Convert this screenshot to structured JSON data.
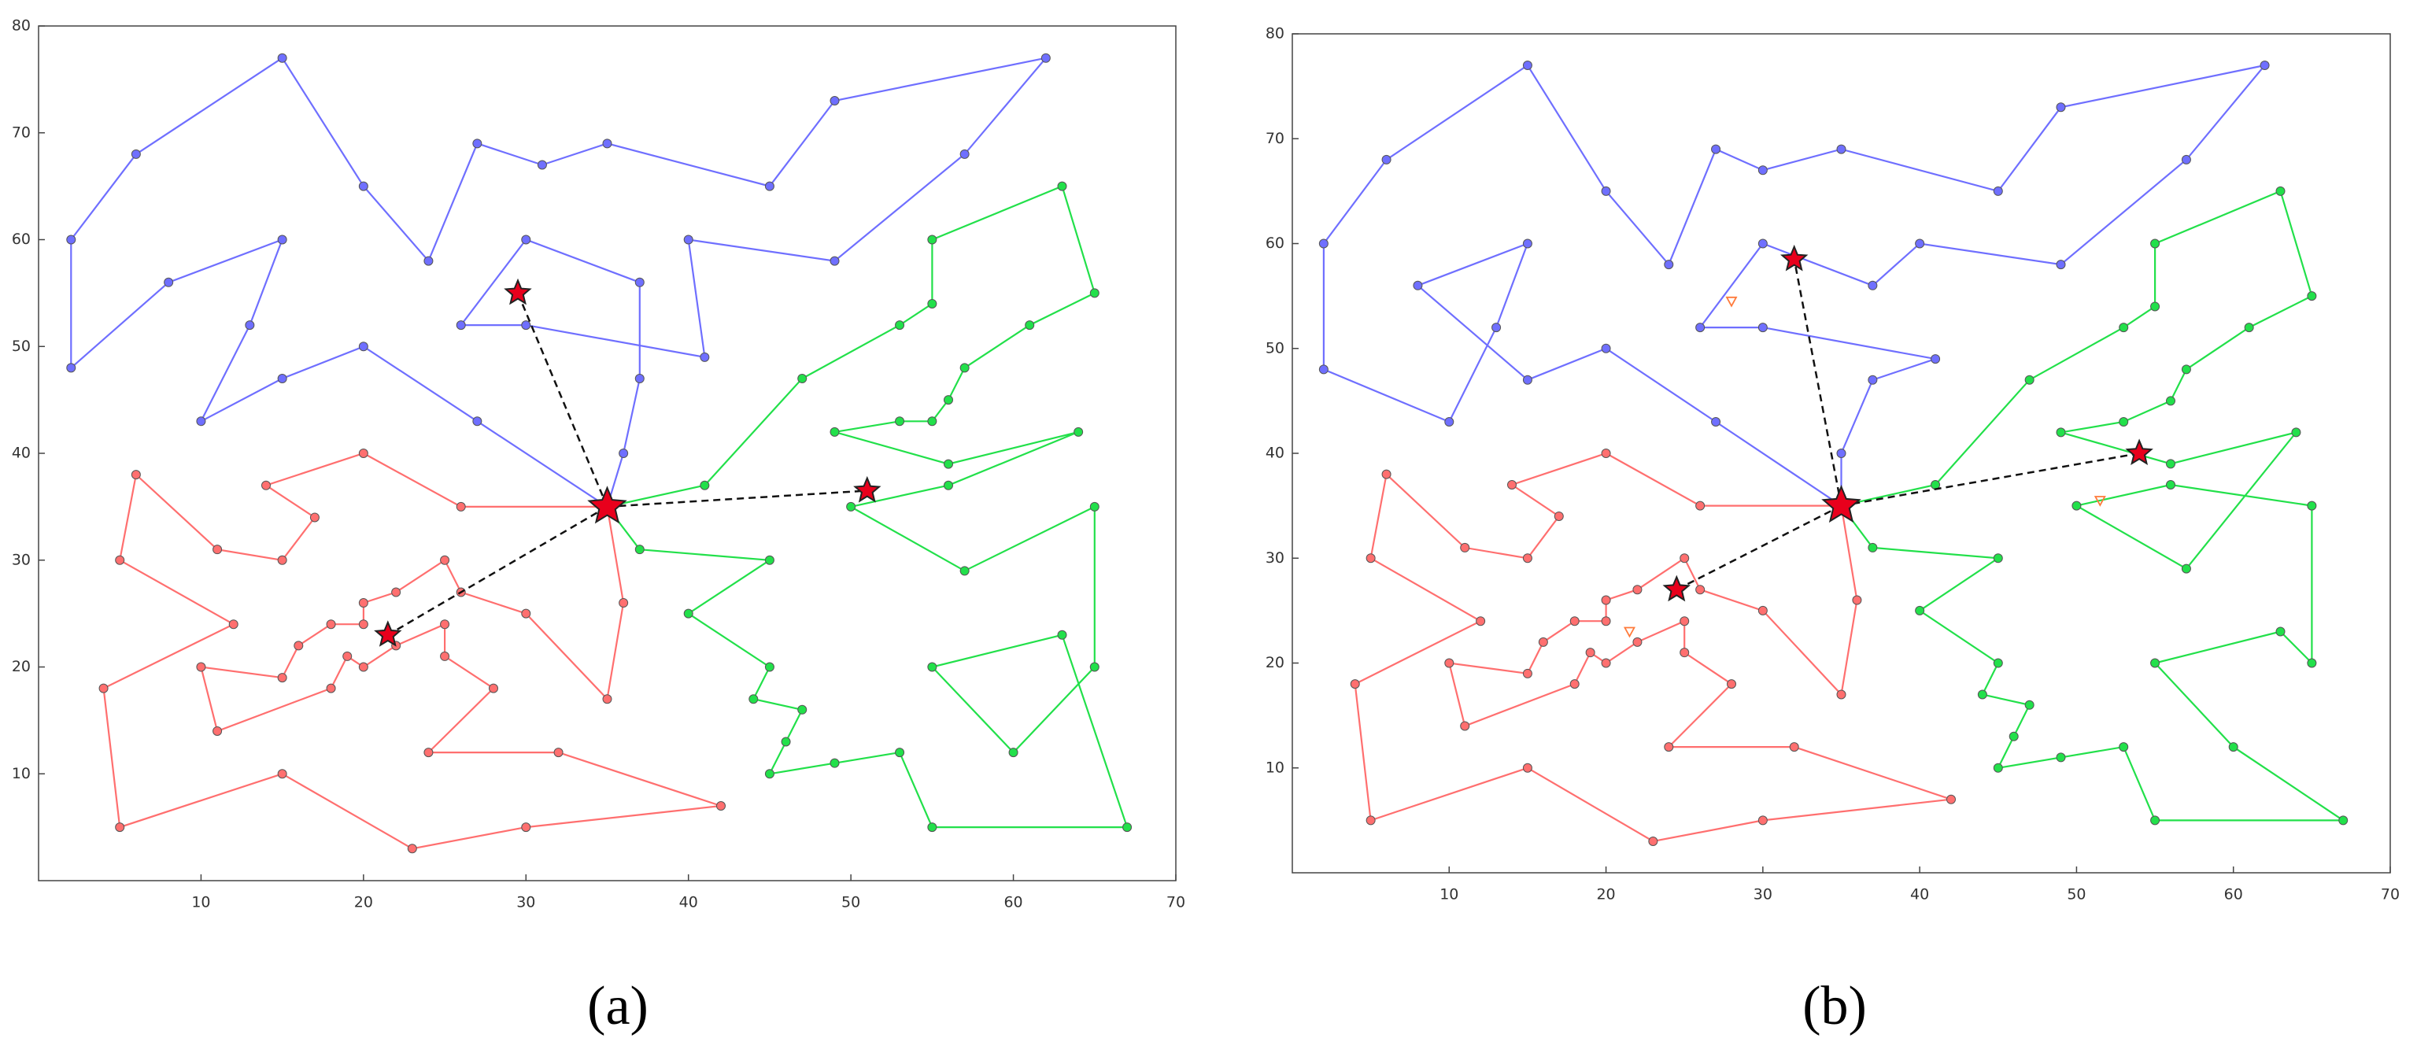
{
  "chart_data": [
    {
      "type": "line",
      "caption": "(a)",
      "xlim": [
        0,
        70
      ],
      "ylim": [
        0,
        80
      ],
      "xticks": [
        10,
        20,
        30,
        40,
        50,
        60,
        70
      ],
      "yticks": [
        10,
        20,
        30,
        40,
        50,
        60,
        70,
        80
      ],
      "series": [
        {
          "color": "#6f6fff",
          "x": [
            35,
            27,
            20,
            15,
            10,
            13,
            15,
            8,
            2,
            2,
            6,
            15,
            20,
            24,
            27,
            31,
            35,
            45,
            49,
            62,
            57,
            49,
            40,
            41,
            30,
            26,
            30,
            37,
            37,
            36,
            35
          ],
          "y": [
            35,
            43,
            50,
            47,
            43,
            52,
            60,
            56,
            48,
            60,
            68,
            77,
            65,
            58,
            69,
            67,
            69,
            65,
            73,
            77,
            68,
            58,
            60,
            49,
            52,
            52,
            60,
            56,
            47,
            40,
            35
          ]
        },
        {
          "color": "#ff6f6f",
          "x": [
            35,
            36,
            35,
            30,
            26,
            25,
            22,
            20,
            20,
            18,
            16,
            15,
            10,
            11,
            18,
            19,
            20,
            22,
            25,
            25,
            28,
            24,
            32,
            42,
            30,
            23,
            15,
            5,
            4,
            12,
            5,
            6,
            11,
            15,
            17,
            14,
            20,
            26,
            35
          ],
          "y": [
            35,
            26,
            17,
            25,
            27,
            30,
            27,
            26,
            24,
            24,
            22,
            19,
            20,
            14,
            18,
            21,
            20,
            22,
            24,
            21,
            18,
            12,
            12,
            7,
            5,
            3,
            10,
            5,
            18,
            24,
            30,
            38,
            31,
            30,
            34,
            37,
            40,
            35,
            35
          ]
        },
        {
          "color": "#22e04a",
          "x": [
            35,
            41,
            47,
            53,
            55,
            55,
            63,
            65,
            61,
            57,
            56,
            55,
            53,
            49,
            56,
            64,
            56,
            50,
            57,
            65,
            65,
            60,
            55,
            63,
            67,
            55,
            53,
            49,
            45,
            46,
            47,
            44,
            45,
            40,
            45,
            37,
            35
          ],
          "y": [
            35,
            37,
            47,
            52,
            54,
            60,
            65,
            55,
            52,
            48,
            45,
            43,
            43,
            42,
            39,
            42,
            37,
            35,
            29,
            35,
            20,
            12,
            20,
            23,
            5,
            5,
            12,
            11,
            10,
            13,
            16,
            17,
            20,
            25,
            30,
            31,
            35
          ]
        }
      ],
      "stars": {
        "color": "#e8001c",
        "x": [
          35,
          29.5,
          21.5,
          51
        ],
        "y": [
          35,
          55,
          23,
          36.5
        ]
      }
    },
    {
      "type": "line",
      "caption": "(b)",
      "xlim": [
        0,
        70
      ],
      "ylim": [
        0,
        80
      ],
      "xticks": [
        10,
        20,
        30,
        40,
        50,
        60,
        70
      ],
      "yticks": [
        10,
        20,
        30,
        40,
        50,
        60,
        70,
        80
      ],
      "series": [
        {
          "color": "#6f6fff",
          "x": [
            35,
            27,
            20,
            15,
            8,
            15,
            13,
            10,
            2,
            2,
            6,
            15,
            20,
            24,
            27,
            30,
            35,
            45,
            49,
            62,
            57,
            49,
            40,
            37,
            30,
            26,
            30,
            41,
            37,
            35,
            35
          ],
          "y": [
            35,
            43,
            50,
            47,
            56,
            60,
            52,
            43,
            48,
            60,
            68,
            77,
            65,
            58,
            69,
            67,
            69,
            65,
            73,
            77,
            68,
            58,
            60,
            56,
            60,
            52,
            52,
            49,
            47,
            40,
            35
          ]
        },
        {
          "color": "#ff6f6f",
          "x": [
            35,
            36,
            35,
            30,
            26,
            25,
            22,
            20,
            20,
            18,
            16,
            15,
            10,
            11,
            18,
            19,
            20,
            22,
            25,
            25,
            28,
            24,
            32,
            42,
            30,
            23,
            15,
            5,
            4,
            12,
            5,
            6,
            11,
            15,
            17,
            14,
            20,
            26,
            35
          ],
          "y": [
            35,
            26,
            17,
            25,
            27,
            30,
            27,
            26,
            24,
            24,
            22,
            19,
            20,
            14,
            18,
            21,
            20,
            22,
            24,
            21,
            18,
            12,
            12,
            7,
            5,
            3,
            10,
            5,
            18,
            24,
            30,
            38,
            31,
            30,
            34,
            37,
            40,
            35,
            35
          ]
        },
        {
          "color": "#22e04a",
          "x": [
            35,
            41,
            47,
            53,
            55,
            55,
            63,
            65,
            61,
            57,
            56,
            53,
            49,
            56,
            64,
            57,
            50,
            56,
            65,
            65,
            63,
            55,
            60,
            67,
            55,
            53,
            49,
            45,
            46,
            47,
            44,
            45,
            40,
            45,
            37,
            35
          ],
          "y": [
            35,
            37,
            47,
            52,
            54,
            60,
            65,
            55,
            52,
            48,
            45,
            43,
            42,
            39,
            42,
            29,
            35,
            37,
            35,
            20,
            23,
            20,
            12,
            5,
            5,
            12,
            11,
            10,
            13,
            16,
            17,
            20,
            25,
            30,
            31,
            35
          ]
        }
      ],
      "stars": {
        "color": "#e8001c",
        "x": [
          35,
          32,
          24.5,
          54
        ],
        "y": [
          35,
          58.5,
          27,
          40
        ]
      },
      "markers": {
        "color": "#ff7a3a",
        "x": [
          28,
          21.5,
          51.5
        ],
        "y": [
          54.5,
          23,
          35.5
        ]
      }
    }
  ]
}
